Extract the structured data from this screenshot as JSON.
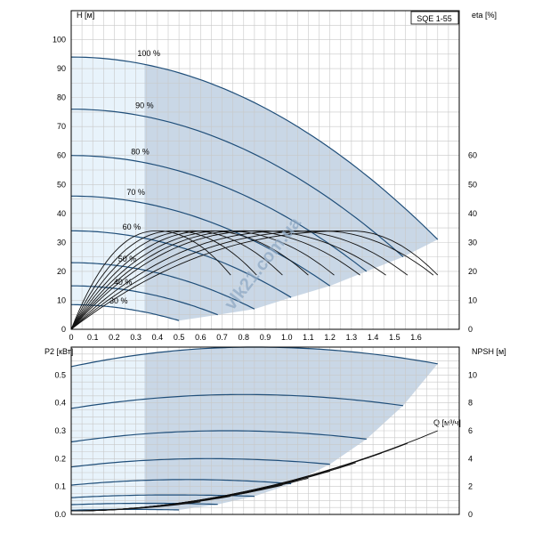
{
  "chart_data": [
    {
      "type": "line",
      "title": "SQE 1-55",
      "xlabel": "Q [м³/ч]",
      "ylabel": "H [м]",
      "y2label": "eta [%]",
      "xlim": [
        0,
        1.8
      ],
      "ylim": [
        0,
        110
      ],
      "y2lim": [
        0,
        110
      ],
      "grid": true,
      "x_ticks": [
        0,
        0.1,
        0.2,
        0.3,
        0.4,
        0.5,
        0.6,
        0.7,
        0.8,
        0.9,
        1.0,
        1.1,
        1.2,
        1.3,
        1.4,
        1.5,
        1.6
      ],
      "y_ticks": [
        0,
        10,
        20,
        30,
        40,
        50,
        60,
        70,
        80,
        90,
        100
      ],
      "y2_ticks": [
        0,
        10,
        20,
        30,
        40,
        50,
        60
      ],
      "operating_region": {
        "q_min": 0.34,
        "color": "#c9d7e6",
        "low_flow_color": "#e8f3fb"
      },
      "series": [
        {
          "name": "100 %",
          "h0": 94,
          "q_max": 1.7,
          "h_end": 31
        },
        {
          "name": "90 %",
          "h0": 76,
          "q_max": 1.54,
          "h_end": 25
        },
        {
          "name": "80 %",
          "h0": 60,
          "q_max": 1.37,
          "h_end": 20
        },
        {
          "name": "70 %",
          "h0": 46,
          "q_max": 1.2,
          "h_end": 15
        },
        {
          "name": "60 %",
          "h0": 34,
          "q_max": 1.02,
          "h_end": 11
        },
        {
          "name": "50 %",
          "h0": 23,
          "q_max": 0.85,
          "h_end": 7
        },
        {
          "name": "40 %",
          "h0": 15,
          "q_max": 0.68,
          "h_end": 5
        },
        {
          "name": "30 %",
          "h0": 8.5,
          "q_max": 0.5,
          "h_end": 3
        }
      ],
      "eta_curves": [
        {
          "q_peak": 0.4,
          "eta_peak": 34,
          "q_end": 0.74
        },
        {
          "q_peak": 0.48,
          "eta_peak": 34,
          "q_end": 0.86
        },
        {
          "q_peak": 0.56,
          "eta_peak": 34,
          "q_end": 0.98
        },
        {
          "q_peak": 0.64,
          "eta_peak": 34,
          "q_end": 1.1
        },
        {
          "q_peak": 0.72,
          "eta_peak": 34,
          "q_end": 1.22
        },
        {
          "q_peak": 0.8,
          "eta_peak": 34,
          "q_end": 1.34
        },
        {
          "q_peak": 0.88,
          "eta_peak": 34,
          "q_end": 1.46
        },
        {
          "q_peak": 1.02,
          "eta_peak": 34,
          "q_end": 1.56
        },
        {
          "q_peak": 1.16,
          "eta_peak": 34,
          "q_end": 1.68
        },
        {
          "q_peak": 1.3,
          "eta_peak": 34,
          "q_end": 1.7
        }
      ]
    },
    {
      "type": "line",
      "xlabel": "",
      "ylabel": "P2 [кВт]",
      "y2label": "NPSH [м]",
      "xlim": [
        0,
        1.8
      ],
      "ylim": [
        0,
        0.6
      ],
      "y2lim": [
        0,
        12
      ],
      "grid": true,
      "y_ticks": [
        0.0,
        0.1,
        0.2,
        0.3,
        0.4,
        0.5
      ],
      "y_tick_labels": [
        "0.0",
        "0.1",
        "0.2",
        "0.3",
        "0.4",
        "0.5"
      ],
      "y2_ticks": [
        0,
        2,
        4,
        6,
        8,
        10
      ],
      "power_series": [
        {
          "name": "100 %",
          "p0": 0.53,
          "p_peak": 0.6,
          "q_peak": 0.85,
          "q_max": 1.7,
          "p_end": 0.54
        },
        {
          "name": "90 %",
          "p0": 0.38,
          "p_peak": 0.43,
          "q_peak": 0.8,
          "q_max": 1.54,
          "p_end": 0.39
        },
        {
          "name": "80 %",
          "p0": 0.26,
          "p_peak": 0.3,
          "q_peak": 0.72,
          "q_max": 1.37,
          "p_end": 0.27
        },
        {
          "name": "70 %",
          "p0": 0.17,
          "p_peak": 0.2,
          "q_peak": 0.63,
          "q_max": 1.2,
          "p_end": 0.18
        },
        {
          "name": "60 %",
          "p0": 0.105,
          "p_peak": 0.125,
          "q_peak": 0.54,
          "q_max": 1.02,
          "p_end": 0.11
        },
        {
          "name": "50 %",
          "p0": 0.06,
          "p_peak": 0.07,
          "q_peak": 0.45,
          "q_max": 0.85,
          "p_end": 0.065
        },
        {
          "name": "40 %",
          "p0": 0.035,
          "p_peak": 0.04,
          "q_peak": 0.36,
          "q_max": 0.68,
          "p_end": 0.036
        },
        {
          "name": "30 %",
          "p0": 0.015,
          "p_peak": 0.018,
          "q_peak": 0.27,
          "q_max": 0.5,
          "p_end": 0.016
        }
      ],
      "npsh_curves": [
        {
          "q_max": 1.7,
          "npsh_end": 6.0
        },
        {
          "q_max": 1.56,
          "npsh_end": 5.1
        },
        {
          "q_max": 1.44,
          "npsh_end": 4.4
        },
        {
          "q_max": 1.32,
          "npsh_end": 3.7
        },
        {
          "q_max": 1.2,
          "npsh_end": 3.1
        },
        {
          "q_max": 1.1,
          "npsh_end": 2.6
        },
        {
          "q_max": 0.98,
          "npsh_end": 2.1
        },
        {
          "q_max": 0.86,
          "npsh_end": 1.7
        },
        {
          "q_max": 0.74,
          "npsh_end": 1.3
        },
        {
          "q_max": 0.6,
          "npsh_end": 0.9
        }
      ]
    }
  ],
  "watermark": "vlk21.com.ua",
  "colors": {
    "grid": "#c8c8c8",
    "h_curve": "#1f4e79",
    "eta_curve": "#111111",
    "npsh_curve": "#111111",
    "region": "#c9d7e6",
    "low_flow": "#e8f3fb",
    "watermark": "#8fa9c4"
  }
}
